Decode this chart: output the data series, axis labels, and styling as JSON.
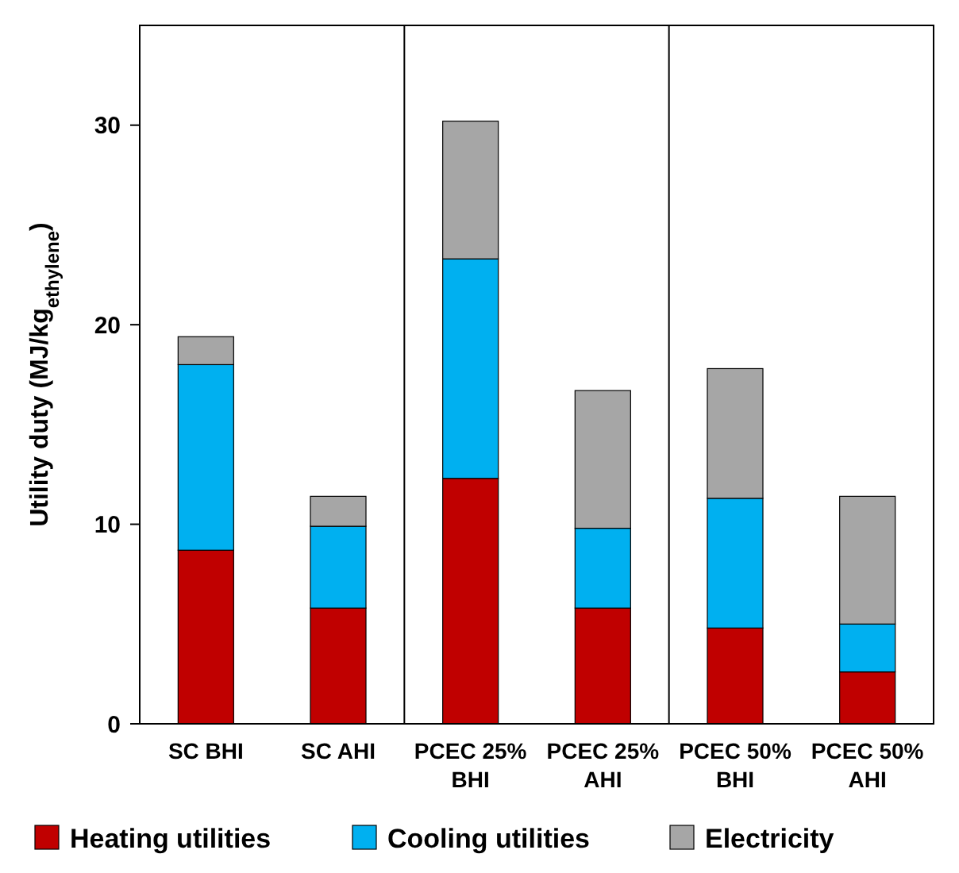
{
  "chart_data": {
    "type": "bar",
    "stacked": true,
    "ylabel": "Utility duty (MJ/kg$_{ethylene}$)",
    "categories": [
      "SC BHI",
      "SC AHI",
      "PCEC 25% BHI",
      "PCEC 25% AHI",
      "PCEC 50% BHI",
      "PCEC 50% AHI"
    ],
    "series": [
      {
        "name": "Heating utilities",
        "color": "#c00000",
        "values": [
          8.7,
          5.8,
          12.3,
          5.8,
          4.8,
          2.6
        ]
      },
      {
        "name": "Cooling utilities",
        "color": "#00b0f0",
        "values": [
          9.3,
          4.1,
          11.0,
          4.0,
          6.5,
          2.4
        ]
      },
      {
        "name": "Electricity",
        "color": "#a6a6a6",
        "values": [
          1.4,
          1.5,
          6.9,
          6.9,
          6.5,
          6.4
        ]
      }
    ],
    "ylim": [
      0,
      35
    ],
    "yticks": [
      0,
      10,
      20,
      30
    ],
    "grid": false,
    "legend": "bottom"
  }
}
